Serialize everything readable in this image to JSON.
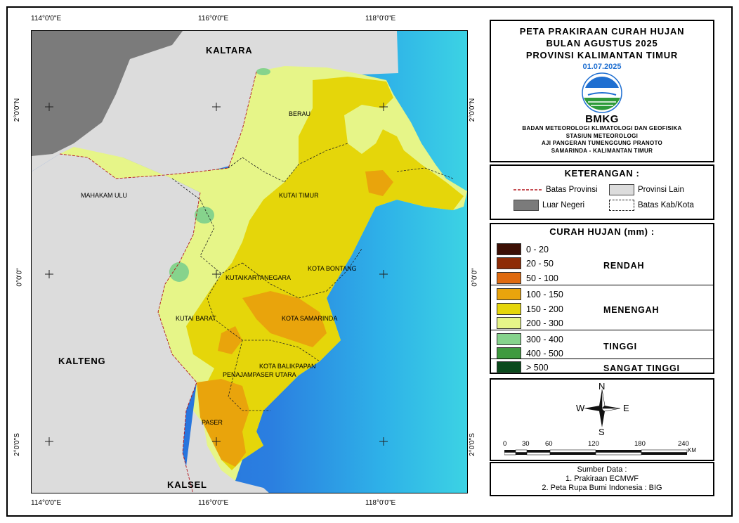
{
  "map": {
    "grid_labels_top": [
      "114°0'0\"E",
      "116°0'0\"E",
      "118°0'0\"E"
    ],
    "grid_labels_bottom": [
      "114°0'0\"E",
      "116°0'0\"E",
      "118°0'0\"E"
    ],
    "grid_labels_left": [
      "2°0'0\"N",
      "0°0'0\"",
      "2°0'0\"S"
    ],
    "grid_labels_right": [
      "2°0'0\"N",
      "0°0'0\"",
      "2°0'0\"S"
    ],
    "province_labels": [
      "KALTARA",
      "KALTENG",
      "KALSEL"
    ],
    "region_labels": [
      "BERAU",
      "MAHAKAM ULU",
      "KUTAI TIMUR",
      "KOTA BONTANG",
      "KUTAIKARTANEGARA",
      "KUTAI BARAT",
      "KOTA SAMARINDA",
      "KOTA BALIKPAPAN",
      "PENAJAMPASER UTARA",
      "PASER"
    ],
    "colors": {
      "sea_deep": "#1f63d9",
      "sea_shallow": "#33c6e6",
      "other_province": "#dcdcdc",
      "foreign": "#7b7b7b"
    }
  },
  "title": {
    "lines": [
      "PETA PRAKIRAAN CURAH HUJAN",
      "BULAN AGUSTUS 2025",
      "PROVINSI KALIMANTAN TIMUR"
    ],
    "date": "01.07.2025",
    "logo_text": "BMKG",
    "agency_lines": [
      "BADAN METEOROLOGI KLIMATOLOGI DAN GEOFISIKA",
      "STASIUN METEOROLOGI",
      "AJI PANGERAN TUMENGGUNG PRANOTO",
      "SAMARINDA - KALIMANTAN TIMUR"
    ]
  },
  "keterangan": {
    "heading": "KETERANGAN :",
    "items": [
      "Batas Provinsi",
      "Provinsi Lain",
      "Luar Negeri",
      "Batas Kab/Kota"
    ]
  },
  "legend": {
    "heading": "CURAH HUJAN (mm) :",
    "classes": [
      {
        "label": "0 - 20",
        "color": "#3d1005"
      },
      {
        "label": "20 - 50",
        "color": "#8e2c06"
      },
      {
        "label": "50 - 100",
        "color": "#df6a0f"
      },
      {
        "label": "100 - 150",
        "color": "#e9a40c"
      },
      {
        "label": "150  - 200",
        "color": "#e5d60a"
      },
      {
        "label": "200 - 300",
        "color": "#e6f588"
      },
      {
        "label": "300 - 400",
        "color": "#86d38c"
      },
      {
        "label": "400 - 500",
        "color": "#3f9a3f"
      },
      {
        "label": "> 500",
        "color": "#0a4a1c"
      }
    ],
    "categories": [
      "RENDAH",
      "MENENGAH",
      "TINGGI",
      "SANGAT TINGGI"
    ]
  },
  "compass": {
    "n": "N",
    "s": "S",
    "e": "E",
    "w": "W"
  },
  "scale": {
    "ticks": [
      "0",
      "30",
      "60",
      "120",
      "180",
      "240"
    ],
    "unit": "KM"
  },
  "source": {
    "heading": "Sumber Data :",
    "lines": [
      "1. Prakiraan ECMWF",
      "2. Peta Rupa Bumi Indonesia : BIG"
    ]
  }
}
